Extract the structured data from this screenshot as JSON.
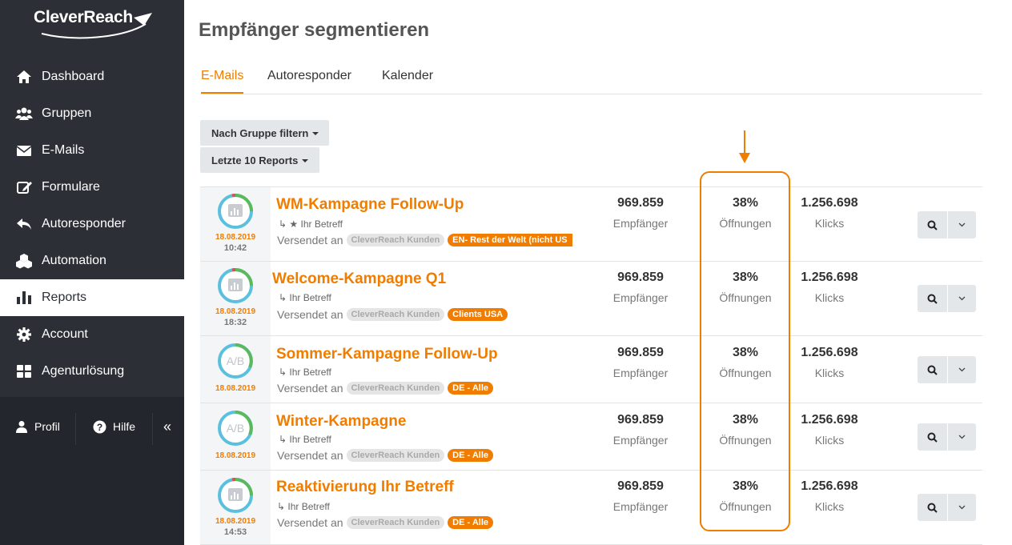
{
  "app": {
    "logo_text": "CleverReach"
  },
  "sidebar": {
    "items": [
      {
        "label": "Dashboard",
        "icon": "home-icon"
      },
      {
        "label": "Gruppen",
        "icon": "users-icon"
      },
      {
        "label": "E-Mails",
        "icon": "envelope-icon"
      },
      {
        "label": "Formulare",
        "icon": "edit-icon"
      },
      {
        "label": "Autoresponder",
        "icon": "reply-icon"
      },
      {
        "label": "Automation",
        "icon": "cubes-icon"
      },
      {
        "label": "Reports",
        "icon": "bar-chart-icon",
        "active": true
      },
      {
        "label": "Account",
        "icon": "gear-icon"
      },
      {
        "label": "Agenturlösung",
        "icon": "grid-icon"
      }
    ],
    "bottom": {
      "profile": "Profil",
      "help": "Hilfe",
      "collapse": "«"
    }
  },
  "page": {
    "title": "Empfänger segmentieren",
    "tabs": [
      {
        "label": "E-Mails",
        "active": true
      },
      {
        "label": "Autoresponder"
      },
      {
        "label": "Kalender"
      }
    ],
    "filters": {
      "group": "Nach Gruppe filtern",
      "reports": "Letzte 10 Reports"
    }
  },
  "reports": [
    {
      "date": "18.08.2019",
      "time": "10:42",
      "badge": "chart",
      "title": "WM-Kampagne Follow-Up",
      "subject": "Ihr Betreff",
      "starred": true,
      "sent_prefix": "Versendet an",
      "group": "CleverReach Kunden",
      "segment": "EN- Rest der Welt (nicht US",
      "recipients": "969.859",
      "recipients_label": "Empfänger",
      "opens": "38%",
      "opens_label": "Öffnungen",
      "clicks": "1.256.698",
      "clicks_label": "Klicks"
    },
    {
      "date": "18.08.2019",
      "time": "18:32",
      "badge": "chart",
      "title": "Welcome-Kampagne Q1",
      "subject": "Ihr Betreff",
      "starred": false,
      "sent_prefix": "Versendet an",
      "group": "CleverReach Kunden",
      "segment": "Clients USA",
      "recipients": "969.859",
      "recipients_label": "Empfänger",
      "opens": "38%",
      "opens_label": "Öffnungen",
      "clicks": "1.256.698",
      "clicks_label": "Klicks"
    },
    {
      "date": "18.08.2019",
      "time": "",
      "badge": "A/B",
      "title": "Sommer-Kampagne Follow-Up",
      "subject": "Ihr Betreff",
      "starred": false,
      "sent_prefix": "Versendet an",
      "group": "CleverReach Kunden",
      "segment": "DE - Alle",
      "recipients": "969.859",
      "recipients_label": "Empfänger",
      "opens": "38%",
      "opens_label": "Öffnungen",
      "clicks": "1.256.698",
      "clicks_label": "Klicks"
    },
    {
      "date": "18.08.2019",
      "time": "",
      "badge": "A/B",
      "title": "Winter-Kampagne",
      "subject": "Ihr Betreff",
      "starred": false,
      "sent_prefix": "Versendet an",
      "group": "CleverReach Kunden",
      "segment": "DE - Alle",
      "recipients": "969.859",
      "recipients_label": "Empfänger",
      "opens": "38%",
      "opens_label": "Öffnungen",
      "clicks": "1.256.698",
      "clicks_label": "Klicks"
    },
    {
      "date": "18.08.2019",
      "time": "14:53",
      "badge": "chart",
      "title": "Reaktivierung Ihr Betreff",
      "subject": "Ihr Betreff",
      "starred": false,
      "sent_prefix": "Versendet an",
      "group": "CleverReach Kunden",
      "segment": "DE - Alle",
      "recipients": "969.859",
      "recipients_label": "Empfänger",
      "opens": "38%",
      "opens_label": "Öffnungen",
      "clicks": "1.256.698",
      "clicks_label": "Klicks"
    }
  ],
  "colors": {
    "accent": "#f07d00",
    "sidebar": "#2c2f36",
    "ring_blue": "#5bc0de",
    "ring_green": "#5cb85c",
    "ring_red": "#d9534f"
  }
}
